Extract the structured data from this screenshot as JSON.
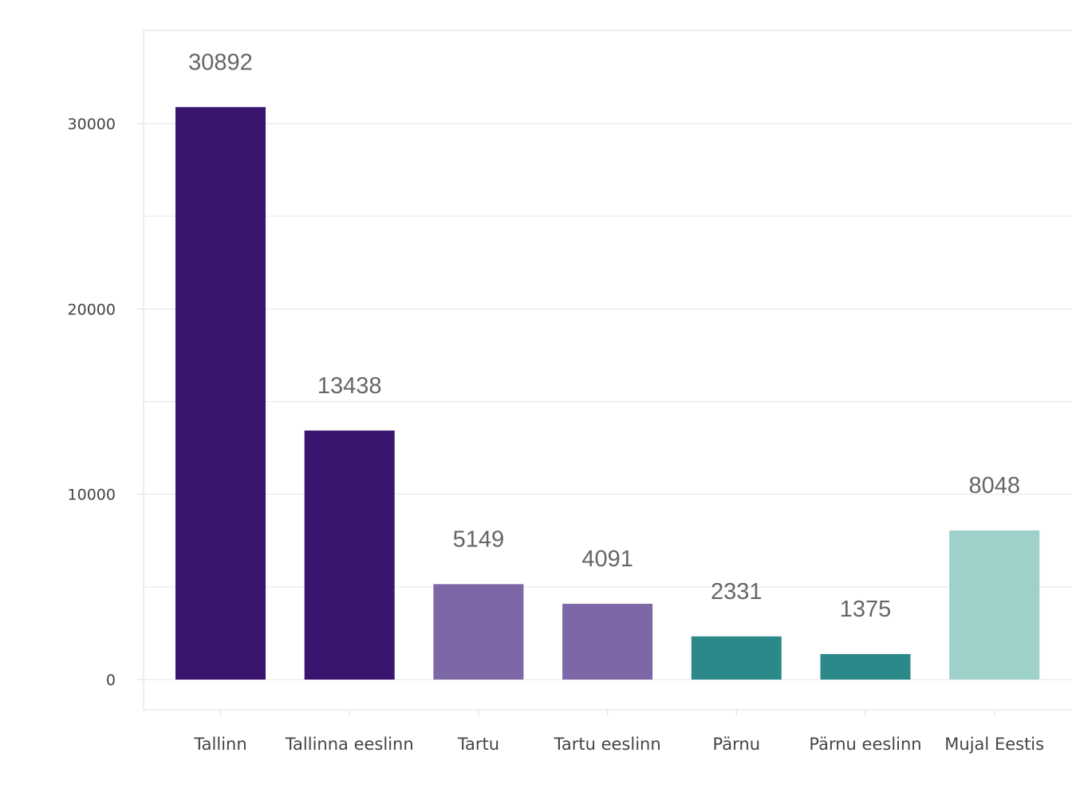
{
  "chart_data": {
    "type": "bar",
    "categories": [
      "Tallinn",
      "Tallinna eeslinn",
      "Tartu",
      "Tartu eeslinn",
      "Pärnu",
      "Pärnu eeslinn",
      "Mujal Eestis"
    ],
    "values": [
      30892,
      13438,
      5149,
      4091,
      2331,
      1375,
      8048
    ],
    "colors": [
      "#391570",
      "#391570",
      "#7e67a6",
      "#7e67a6",
      "#2c898a",
      "#2c898a",
      "#9dd1ca"
    ],
    "title": "",
    "xlabel": "",
    "ylabel": "",
    "ylim": [
      0,
      35000
    ],
    "yticks": [
      0,
      10000,
      20000,
      30000
    ],
    "grid": true,
    "data_labels": true
  }
}
